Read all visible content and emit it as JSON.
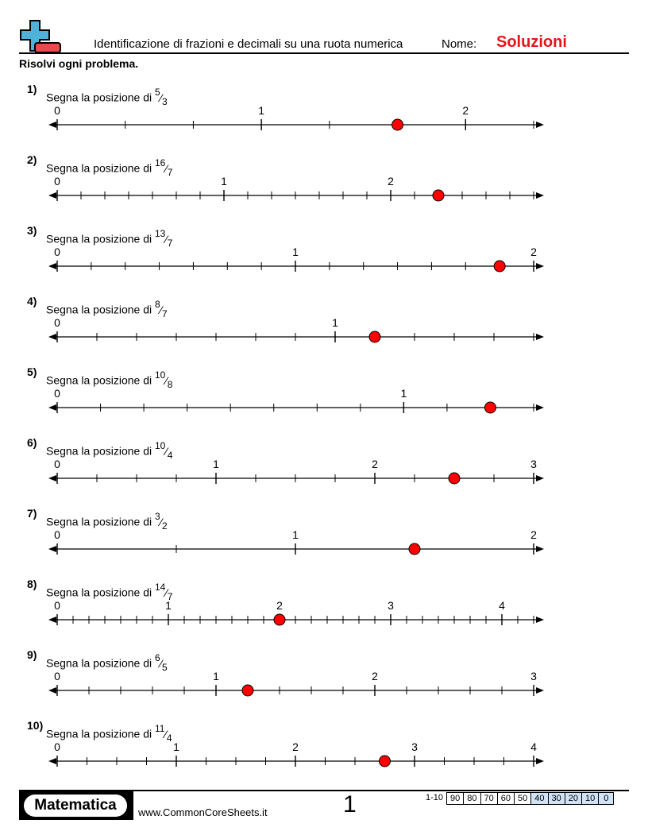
{
  "header": {
    "title": "Identificazione di frazioni e decimali su una ruota numerica",
    "name_label": "Nome:",
    "name_value": "Soluzioni",
    "instructions": "Risolvi ogni problema."
  },
  "colors": {
    "answer_dot": "#ff0000",
    "solution_text": "#e8141b",
    "logo_blue": "#4fb3d9",
    "logo_red": "#e84a4f",
    "score_highlight": "#cfe2f7"
  },
  "problem_prompt": "Segna la posizione di",
  "problems": [
    {
      "number": "1)",
      "numerator": 5,
      "denominator": 3,
      "axis_max_numerator": 7,
      "labels": [
        "0",
        "1",
        "2"
      ]
    },
    {
      "number": "2)",
      "numerator": 16,
      "denominator": 7,
      "axis_max_numerator": 20,
      "labels": [
        "0",
        "1",
        "2"
      ]
    },
    {
      "number": "3)",
      "numerator": 13,
      "denominator": 7,
      "axis_max_numerator": 14,
      "labels": [
        "0",
        "1",
        "2"
      ]
    },
    {
      "number": "4)",
      "numerator": 8,
      "denominator": 7,
      "axis_max_numerator": 12,
      "labels": [
        "0",
        "1"
      ]
    },
    {
      "number": "5)",
      "numerator": 10,
      "denominator": 8,
      "axis_max_numerator": 11,
      "labels": [
        "0",
        "1"
      ]
    },
    {
      "number": "6)",
      "numerator": 10,
      "denominator": 4,
      "axis_max_numerator": 12,
      "labels": [
        "0",
        "1",
        "2",
        "3"
      ]
    },
    {
      "number": "7)",
      "numerator": 3,
      "denominator": 2,
      "axis_max_numerator": 4,
      "labels": [
        "0",
        "1",
        "2"
      ]
    },
    {
      "number": "8)",
      "numerator": 14,
      "denominator": 7,
      "axis_max_numerator": 30,
      "labels": [
        "0",
        "1",
        "2",
        "3",
        "4"
      ]
    },
    {
      "number": "9)",
      "numerator": 6,
      "denominator": 5,
      "axis_max_numerator": 15,
      "labels": [
        "0",
        "1",
        "2",
        "3"
      ]
    },
    {
      "number": "10)",
      "numerator": 11,
      "denominator": 4,
      "axis_max_numerator": 16,
      "labels": [
        "0",
        "1",
        "2",
        "3",
        "4"
      ]
    }
  ],
  "footer": {
    "brand": "Matematica",
    "website": "www.CommonCoreSheets.it",
    "page_number": "1",
    "score_label": "1-10",
    "scores": [
      "90",
      "80",
      "70",
      "60",
      "50",
      "40",
      "30",
      "20",
      "10",
      "0"
    ]
  }
}
